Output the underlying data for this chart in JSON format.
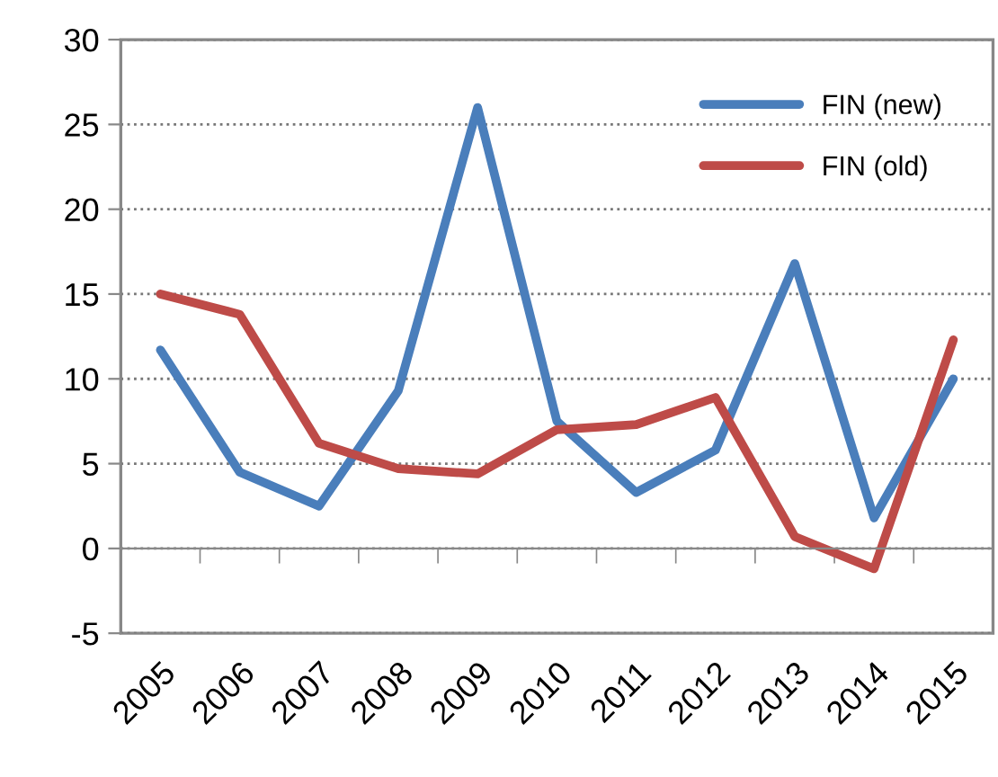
{
  "chart_data": {
    "type": "line",
    "categories": [
      "2005",
      "2006",
      "2007",
      "2008",
      "2009",
      "2010",
      "2011",
      "2012",
      "2013",
      "2014",
      "2015"
    ],
    "series": [
      {
        "name": "FIN (new)",
        "color": "#4a7ebb",
        "values": [
          11.7,
          4.5,
          2.5,
          9.3,
          26.0,
          7.5,
          3.3,
          5.8,
          16.8,
          1.8,
          10.0
        ]
      },
      {
        "name": "FIN (old)",
        "color": "#be4b48",
        "values": [
          15.0,
          13.8,
          6.2,
          4.7,
          4.4,
          7.0,
          7.3,
          8.9,
          0.7,
          -1.2,
          12.3
        ]
      }
    ],
    "ylim": [
      -5,
      30
    ],
    "yticks": [
      -5,
      0,
      5,
      10,
      15,
      20,
      25,
      30
    ],
    "grid": "y",
    "legend": "top right",
    "marker": "none",
    "line_style": "solid"
  }
}
